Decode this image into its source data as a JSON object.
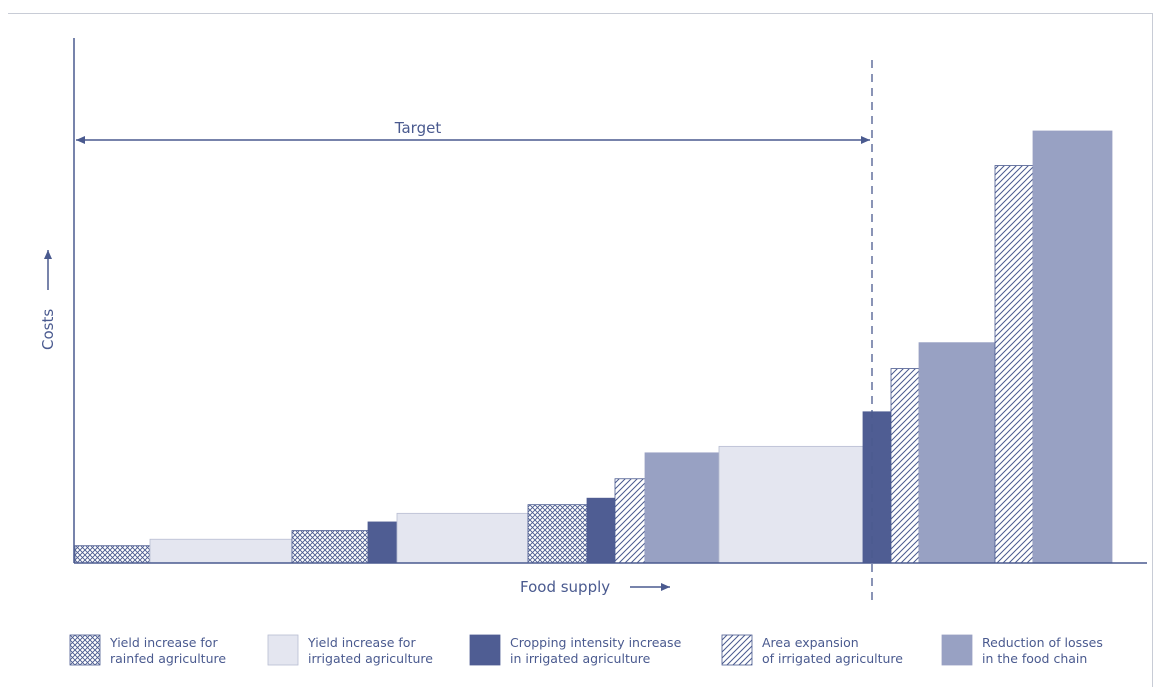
{
  "chart_data": {
    "type": "bar",
    "xlabel": "Food supply",
    "ylabel": "Costs",
    "target_label": "Target",
    "segments": [
      {
        "category": "rainfed",
        "value": 4
      },
      {
        "category": "irrigated_yield",
        "value": 5.5
      },
      {
        "category": "rainfed",
        "value": 7.5
      },
      {
        "category": "cropping",
        "value": 9.5
      },
      {
        "category": "irrigated_yield",
        "value": 11.5
      },
      {
        "category": "rainfed",
        "value": 13.5
      },
      {
        "category": "cropping",
        "value": 15
      },
      {
        "category": "area",
        "value": 19.5
      },
      {
        "category": "losses",
        "value": 25.5
      },
      {
        "category": "irrigated_yield",
        "value": 27
      },
      {
        "category": "cropping",
        "value": 35
      },
      {
        "category": "area",
        "value": 45
      },
      {
        "category": "losses",
        "value": 51
      },
      {
        "category": "area",
        "value": 92
      },
      {
        "category": "losses",
        "value": 100
      }
    ],
    "legend": [
      {
        "key": "rainfed",
        "line1": "Yield increase for",
        "line2": "rainfed agriculture"
      },
      {
        "key": "irrigated_yield",
        "line1": "Yield increase for",
        "line2": "irrigated agriculture"
      },
      {
        "key": "cropping",
        "line1": "Cropping intensity increase",
        "line2": "in irrigated agriculture"
      },
      {
        "key": "area",
        "line1": "Area expansion",
        "line2": "of irrigated agriculture"
      },
      {
        "key": "losses",
        "line1": "Reduction of losses",
        "line2": "in the food chain"
      }
    ],
    "colors": {
      "axis": "#4a5a8f",
      "cropping": "#4f5d93",
      "losses": "#98a1c3",
      "irrigated_yield": "#e4e6f0",
      "pattern_stroke": "#4a5a8f"
    }
  }
}
